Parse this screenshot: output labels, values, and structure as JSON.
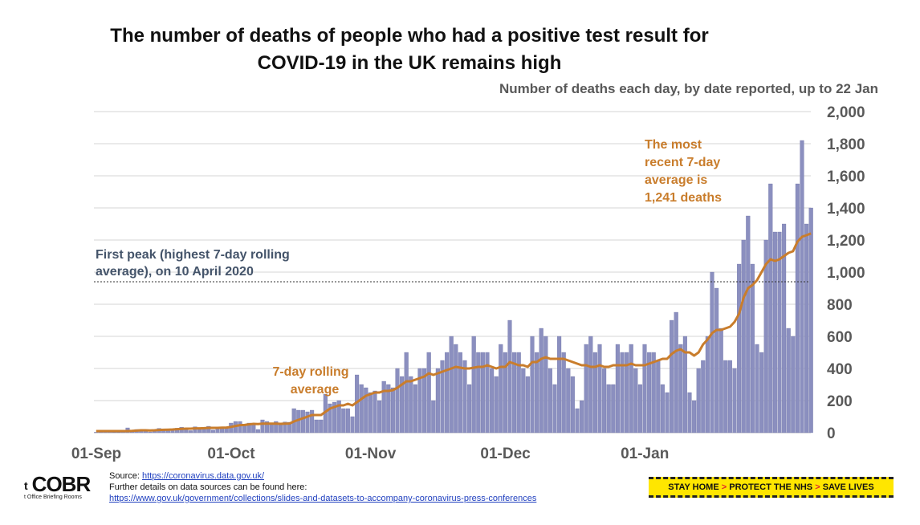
{
  "title_line1": "The number of deaths of people who had a positive test result for",
  "title_line2": "COVID-19 in the UK remains high",
  "subtitle": "Number of deaths each day, by date reported, up to 22 Jan",
  "colors": {
    "bar": "#8b8fbf",
    "bar_stroke": "#6b6fa3",
    "line": "#c97d2c",
    "grid": "#d6d6d6",
    "axis": "#595959",
    "peak_label": "#44546a"
  },
  "chart_data": {
    "type": "bar",
    "x_start_date": "2020-09-01",
    "y_axis": {
      "min": 0,
      "max": 2000,
      "ticks": [
        "0",
        "200",
        "400",
        "600",
        "800",
        "1,000",
        "1,200",
        "1,400",
        "1,600",
        "1,800",
        "2,000"
      ],
      "tick_values": [
        0,
        200,
        400,
        600,
        800,
        1000,
        1200,
        1400,
        1600,
        1800,
        2000
      ],
      "position": "right"
    },
    "x_axis": {
      "labels": [
        "01-Sep",
        "01-Oct",
        "01-Nov",
        "01-Dec",
        "01-Jan"
      ],
      "label_days": [
        0,
        30,
        61,
        91,
        122
      ]
    },
    "grid": true,
    "series": [
      {
        "name": "",
        "type": "bar",
        "values": [
          3,
          3,
          10,
          12,
          2,
          2,
          8,
          30,
          14,
          20,
          20,
          9,
          5,
          18,
          27,
          21,
          11,
          18,
          28,
          34,
          25,
          13,
          37,
          30,
          34,
          40,
          17,
          27,
          35,
          30,
          60,
          70,
          70,
          50,
          60,
          55,
          20,
          80,
          70,
          60,
          70,
          60,
          67,
          65,
          150,
          140,
          140,
          130,
          140,
          80,
          80,
          240,
          180,
          190,
          200,
          150,
          150,
          100,
          360,
          300,
          280,
          250,
          260,
          200,
          320,
          300,
          280,
          400,
          350,
          500,
          350,
          300,
          400,
          400,
          500,
          200,
          400,
          450,
          500,
          600,
          550,
          500,
          450,
          300,
          600,
          500,
          500,
          500,
          400,
          350,
          550,
          500,
          700,
          500,
          500,
          400,
          350,
          600,
          500,
          650,
          600,
          400,
          300,
          600,
          500,
          400,
          350,
          150,
          200,
          550,
          600,
          500,
          550,
          400,
          300,
          300,
          550,
          500,
          500,
          550,
          400,
          300,
          550,
          500,
          500,
          450,
          300,
          250,
          700,
          750,
          550,
          600,
          250,
          200,
          400,
          450,
          600,
          1000,
          900,
          650,
          450,
          450,
          400,
          1050,
          1200,
          1350,
          1050,
          550,
          500,
          1200,
          1550,
          1250,
          1250,
          1300,
          650,
          600,
          1550,
          1820,
          1300,
          1400
        ]
      },
      {
        "name": "",
        "type": "line",
        "values": [
          10,
          10,
          10,
          10,
          10,
          10,
          10,
          10,
          11,
          13,
          15,
          15,
          14,
          15,
          17,
          18,
          19,
          20,
          22,
          24,
          25,
          25,
          27,
          27,
          28,
          30,
          30,
          30,
          31,
          32,
          36,
          42,
          47,
          48,
          52,
          55,
          54,
          56,
          56,
          56,
          56,
          55,
          56,
          57,
          70,
          80,
          90,
          100,
          110,
          110,
          110,
          130,
          150,
          160,
          170,
          170,
          180,
          170,
          190,
          210,
          230,
          240,
          250,
          250,
          260,
          260,
          265,
          280,
          300,
          320,
          320,
          330,
          340,
          350,
          370,
          360,
          370,
          380,
          390,
          400,
          410,
          405,
          400,
          400,
          405,
          410,
          410,
          420,
          410,
          400,
          410,
          410,
          440,
          430,
          420,
          420,
          410,
          440,
          440,
          460,
          470,
          460,
          460,
          460,
          460,
          450,
          440,
          430,
          420,
          420,
          410,
          410,
          420,
          410,
          410,
          420,
          420,
          420,
          420,
          430,
          420,
          420,
          420,
          430,
          440,
          450,
          460,
          460,
          490,
          510,
          520,
          500,
          500,
          480,
          500,
          550,
          580,
          620,
          640,
          640,
          650,
          660,
          690,
          740,
          840,
          900,
          920,
          950,
          1000,
          1050,
          1080,
          1070,
          1080,
          1100,
          1120,
          1130,
          1190,
          1220,
          1230,
          1241
        ]
      }
    ],
    "annotations": {
      "peak_value": 940,
      "peak_label_line1": "First peak (highest 7-day rolling",
      "peak_label_line2": "average), on 10 April 2020",
      "rolling_label_line1": "7-day rolling",
      "rolling_label_line2": "average",
      "recent_label_line1": "The most",
      "recent_label_line2": "recent 7-day",
      "recent_label_line3": "average is",
      "recent_label_line4": "1,241 deaths"
    }
  },
  "footer": {
    "logo": "COBR",
    "logo_prefix": "t",
    "logo_sub": "t Office Briefing Rooms",
    "source_label": "Source: ",
    "source_link": "https://coronavirus.data.gov.uk/",
    "details_text": "Further details on data sources can be found here:",
    "details_link": "https://www.gov.uk/government/collections/slides-and-datasets-to-accompany-coronavirus-press-conferences",
    "banner_part1": "STAY HOME",
    "banner_part2": "PROTECT THE NHS",
    "banner_part3": "SAVE LIVES",
    "banner_sep": ">"
  }
}
